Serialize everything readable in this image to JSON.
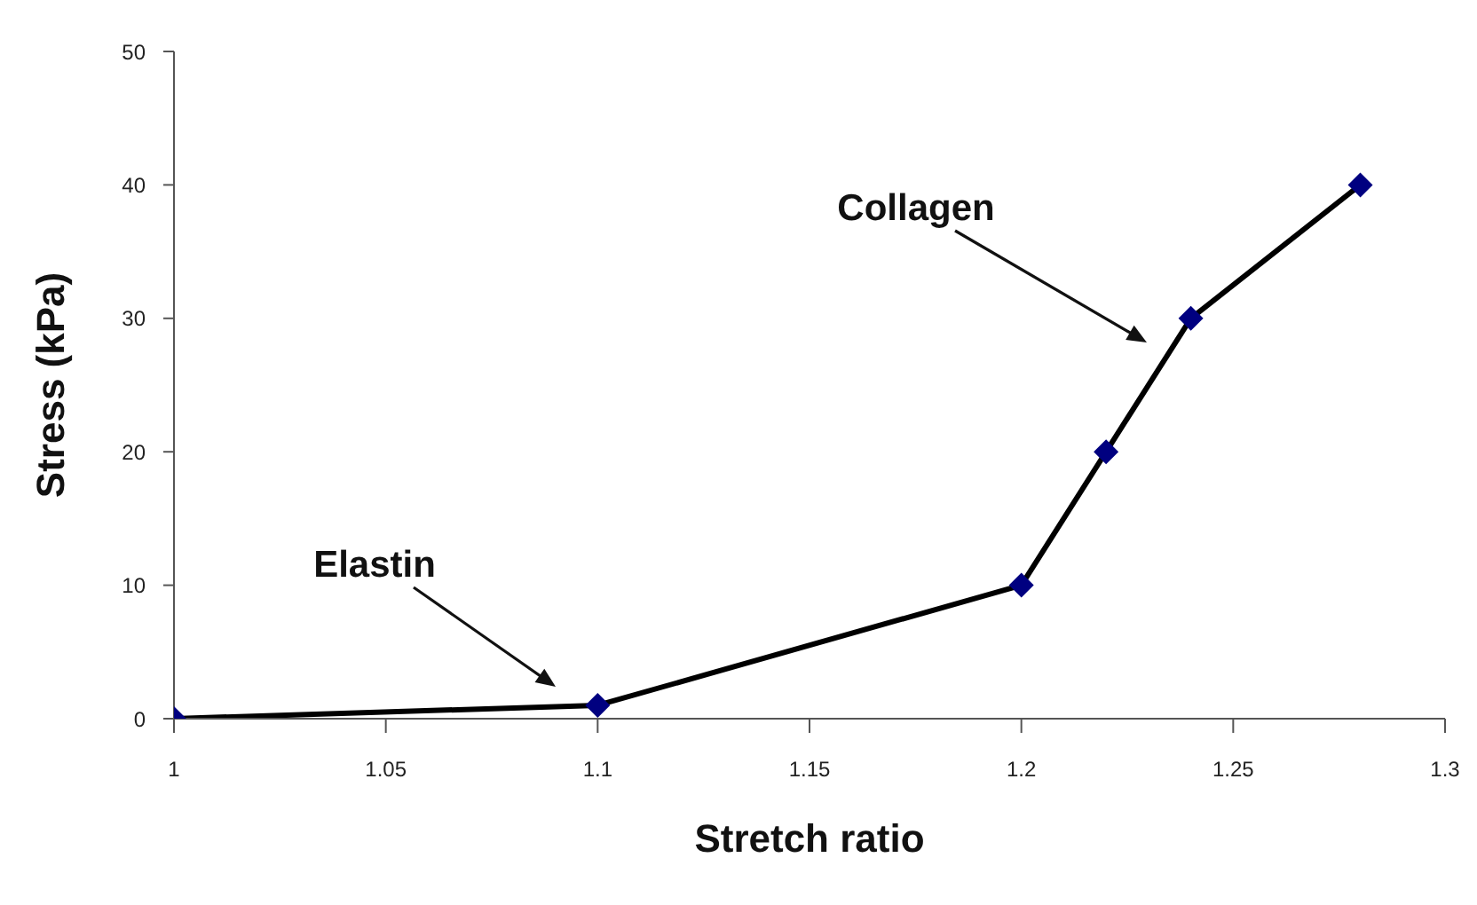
{
  "chart_data": {
    "type": "line",
    "xlabel": "Stretch ratio",
    "ylabel": "Stress (kPa)",
    "x": [
      1,
      1.1,
      1.2,
      1.22,
      1.24,
      1.28
    ],
    "series": [
      {
        "color": "#000000",
        "colors": [
          "#000080",
          "#000080",
          "#000080",
          "#000080",
          "#000080",
          "#000080"
        ],
        "values": [
          0,
          1,
          10,
          20,
          30,
          40
        ]
      }
    ],
    "xlim": [
      1,
      1.3
    ],
    "xticks": [
      1,
      1.05,
      1.1,
      1.15,
      1.2,
      1.25,
      1.3
    ],
    "ylim": [
      0,
      50
    ],
    "yticks": [
      0,
      10,
      20,
      30,
      40,
      50
    ],
    "grid": false,
    "legend": false,
    "marker": "diamond",
    "line_style": "solid",
    "annotations": [
      "Elastin",
      "Collagen"
    ]
  }
}
